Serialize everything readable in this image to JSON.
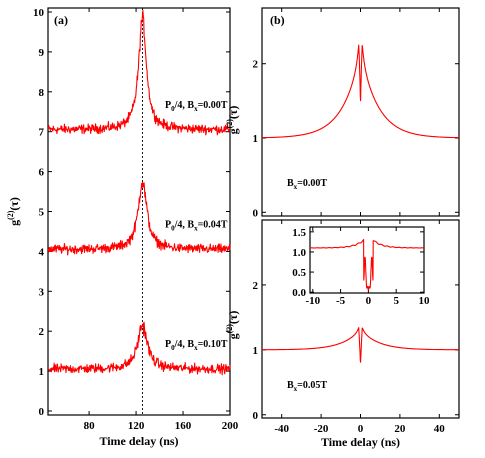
{
  "colors": {
    "series": "#ff0000",
    "axis": "#000000",
    "guide": "#000000"
  },
  "chart_data": [
    {
      "id": "a",
      "type": "line",
      "panel_label": "(a)",
      "xlabel": "Time delay (ns)",
      "ylabel": {
        "main": "g",
        "sup": "(2)",
        "arg": "(τ)"
      },
      "xlim": [
        45,
        200
      ],
      "ylim": [
        -0.1,
        10.1
      ],
      "xticks": [
        80,
        120,
        160,
        200
      ],
      "yticks": [
        0,
        1,
        2,
        3,
        4,
        5,
        6,
        7,
        8,
        9,
        10
      ],
      "grid": false,
      "vertical_guide_x": 125.5,
      "series": [
        {
          "baseline": 7.05,
          "peak": 2.8,
          "center": 125.5,
          "width": 4.0,
          "noise": 0.17,
          "annotation": {
            "main": "P",
            "sub1": "0",
            "mid": "/4, B",
            "sub2": "x",
            "tail": "=0.00T"
          }
        },
        {
          "baseline": 4.05,
          "peak": 1.7,
          "center": 125.5,
          "width": 4.5,
          "noise": 0.17,
          "annotation": {
            "main": "P",
            "sub1": "0",
            "mid": "/4, B",
            "sub2": "x",
            "tail": "=0.04T"
          }
        },
        {
          "baseline": 1.05,
          "peak": 1.1,
          "center": 125.5,
          "width": 5.0,
          "noise": 0.17,
          "annotation": {
            "main": "P",
            "sub1": "0",
            "mid": "/4, B",
            "sub2": "x",
            "tail": "=0.10T"
          }
        }
      ]
    },
    {
      "id": "b_top",
      "type": "line",
      "panel_label": "(b)",
      "xlabel": "",
      "ylabel": {
        "main": "g",
        "sup": "(2)",
        "arg": "(τ)"
      },
      "xlim": [
        -50,
        50
      ],
      "ylim": [
        -0.05,
        2.75
      ],
      "xticks": [
        -40,
        -20,
        0,
        20,
        40
      ],
      "yticks": [
        0,
        1,
        2
      ],
      "show_x_tick_labels": false,
      "grid": false,
      "annotation": {
        "main": "B",
        "sub": "x",
        "tail": "=0.00T"
      },
      "series": [
        {
          "shape": "double-peak-cusp",
          "baseline": 1.0,
          "peak": 2.65,
          "dip_to": 1.45
        }
      ]
    },
    {
      "id": "b_bottom",
      "type": "line",
      "panel_label": "",
      "xlabel": "Time delay (ns)",
      "ylabel": {
        "main": "g",
        "sup": "(2)",
        "arg": "(τ)"
      },
      "xlim": [
        -50,
        50
      ],
      "ylim": [
        -0.05,
        3.0
      ],
      "xticks": [
        -40,
        -20,
        0,
        20,
        40
      ],
      "yticks": [
        0,
        1,
        2
      ],
      "grid": false,
      "annotation": {
        "main": "B",
        "sub": "x",
        "tail": "=0.05T"
      },
      "series": [
        {
          "shape": "double-peak-cusp",
          "baseline": 1.0,
          "peak": 1.45,
          "dip_to": 0.78
        }
      ]
    },
    {
      "id": "b_inset",
      "type": "line",
      "panel_label": "",
      "xlabel": "",
      "ylabel": "",
      "xlim": [
        -10.5,
        10
      ],
      "ylim": [
        -0.02,
        1.62
      ],
      "xticks": [
        -10,
        -5,
        0,
        5,
        10
      ],
      "yticks": [
        0.0,
        0.5,
        1.0,
        1.5
      ],
      "ytick_labels": [
        "0.0",
        "0.5",
        "1.0",
        "1.5"
      ],
      "grid": false,
      "series": [
        {
          "shape": "oscillating-dip",
          "baseline": 1.1,
          "peak": 1.45,
          "dip_to": 0.02
        }
      ]
    }
  ]
}
